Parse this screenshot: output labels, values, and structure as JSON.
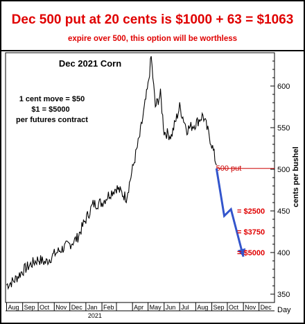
{
  "headline": {
    "main": "Dec 500 put at 20 cents is $1000 + 63 = $1063",
    "sub": "expire over 500, this option will be worthless",
    "color": "#e00000"
  },
  "chart_data": {
    "type": "line",
    "title": "Dec 2021 Corn",
    "ylabel": "cents per bushel",
    "xlabel": "Day",
    "year_label": "2021",
    "ylim": [
      340,
      640
    ],
    "y_ticks": [
      350,
      400,
      450,
      500,
      550,
      600
    ],
    "x_months": [
      "Aug",
      "Sep",
      "Oct",
      "Nov",
      "Dec",
      "Jan",
      "Feb",
      "Mar",
      "Apr",
      "May",
      "Jun",
      "Jul",
      "Aug",
      "Sep",
      "Oct",
      "Nov",
      "Dec"
    ],
    "x_month_labels_shown": [
      "Aug",
      "Sep",
      "Oct",
      "Nov",
      "Dec",
      "Jan",
      "Feb",
      "",
      "Apr",
      "May",
      "Jun",
      "Jul",
      "Aug",
      "Sep",
      "Oct",
      "Nov",
      "Dec"
    ],
    "legend_notes": [
      "1 cent move = $50",
      "$1 = $5000",
      "per futures contract"
    ],
    "price_series": {
      "name": "",
      "color": "#000000",
      "points": [
        [
          "2020-08-01",
          361
        ],
        [
          "2020-08-15",
          366
        ],
        [
          "2020-09-01",
          378
        ],
        [
          "2020-09-15",
          385
        ],
        [
          "2020-10-01",
          392
        ],
        [
          "2020-10-15",
          388
        ],
        [
          "2020-11-01",
          398
        ],
        [
          "2020-11-15",
          404
        ],
        [
          "2020-12-01",
          410
        ],
        [
          "2020-12-15",
          417
        ],
        [
          "2021-01-01",
          440
        ],
        [
          "2021-01-15",
          458
        ],
        [
          "2021-02-01",
          460
        ],
        [
          "2021-02-15",
          470
        ],
        [
          "2021-03-01",
          478
        ],
        [
          "2021-03-20",
          466
        ],
        [
          "2021-04-01",
          500
        ],
        [
          "2021-04-15",
          540
        ],
        [
          "2021-05-01",
          600
        ],
        [
          "2021-05-07",
          635
        ],
        [
          "2021-05-15",
          575
        ],
        [
          "2021-05-25",
          590
        ],
        [
          "2021-06-01",
          545
        ],
        [
          "2021-06-15",
          540
        ],
        [
          "2021-07-01",
          575
        ],
        [
          "2021-07-15",
          548
        ],
        [
          "2021-08-01",
          555
        ],
        [
          "2021-08-15",
          565
        ],
        [
          "2021-09-01",
          530
        ],
        [
          "2021-09-10",
          505
        ]
      ]
    },
    "projection_series": {
      "name": "",
      "color": "#3355cc",
      "points": [
        [
          "2021-09-10",
          501
        ],
        [
          "2021-09-25",
          444
        ],
        [
          "2021-10-08",
          452
        ],
        [
          "2021-11-01",
          395
        ]
      ]
    },
    "reference_line": {
      "value": 501,
      "label": "500 put",
      "color": "#cc0000"
    },
    "annotations": [
      {
        "label": "= $2500",
        "value": 450,
        "color": "#e00000"
      },
      {
        "label": "= $3750",
        "value": 425,
        "color": "#e00000"
      },
      {
        "label": "= $5000",
        "value": 400,
        "color": "#e00000"
      }
    ],
    "grid": false
  }
}
